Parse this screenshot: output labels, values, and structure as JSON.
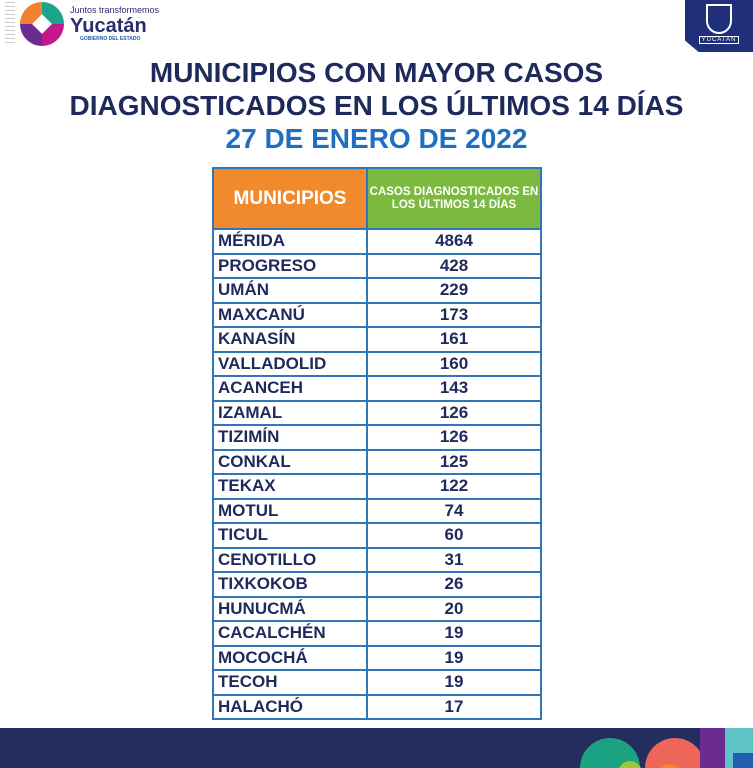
{
  "header": {
    "logo_line1": "Juntos transformemos",
    "logo_line2": "Yucatán",
    "logo_line3": "GOBIERNO DEL ESTADO",
    "seal_text": "YUCATAN"
  },
  "title": {
    "line1": "MUNICIPIOS CON MAYOR CASOS",
    "line2": "DIAGNOSTICADOS EN LOS ÚLTIMOS 14 DÍAS",
    "date": "27 DE ENERO DE 2022"
  },
  "table": {
    "headers": [
      "MUNICIPIOS",
      "CASOS DIAGNOSTICADOS EN LOS ÚLTIMOS 14 DÍAS"
    ],
    "rows": [
      [
        "MÉRIDA",
        "4864"
      ],
      [
        "PROGRESO",
        "428"
      ],
      [
        "UMÁN",
        "229"
      ],
      [
        "MAXCANÚ",
        "173"
      ],
      [
        "KANASÍN",
        "161"
      ],
      [
        "VALLADOLID",
        "160"
      ],
      [
        "ACANCEH",
        "143"
      ],
      [
        "IZAMAL",
        "126"
      ],
      [
        "TIZIMÍN",
        "126"
      ],
      [
        "CONKAL",
        "125"
      ],
      [
        "TEKAX",
        "122"
      ],
      [
        "MOTUL",
        "74"
      ],
      [
        "TICUL",
        "60"
      ],
      [
        "CENOTILLO",
        "31"
      ],
      [
        "TIXKOKOB",
        "26"
      ],
      [
        "HUNUCMÁ",
        "20"
      ],
      [
        "CACALCHÉN",
        "19"
      ],
      [
        "MOCOCHÁ",
        "19"
      ],
      [
        "TECOH",
        "19"
      ],
      [
        "HALACHÓ",
        "17"
      ]
    ]
  }
}
